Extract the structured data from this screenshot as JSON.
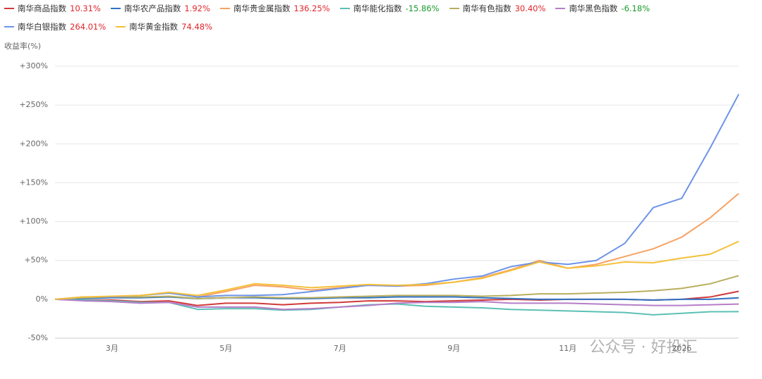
{
  "chart_data": {
    "type": "line",
    "y_axis_label": "收益率(%)",
    "watermark": "公众号 · 好投汇",
    "categories": [
      "",
      "",
      "3月",
      "",
      "",
      "",
      "5月",
      "",
      "",
      "",
      "7月",
      "",
      "",
      "",
      "9月",
      "",
      "",
      "",
      "11月",
      "",
      "",
      "",
      "2026",
      "",
      ""
    ],
    "ylim": [
      -50,
      300
    ],
    "yticks": [
      {
        "value": -50,
        "label": "-50%"
      },
      {
        "value": 0,
        "label": "0%"
      },
      {
        "value": 50,
        "label": "+50%"
      },
      {
        "value": 100,
        "label": "+100%"
      },
      {
        "value": 150,
        "label": "+150%"
      },
      {
        "value": 200,
        "label": "+200%"
      },
      {
        "value": 250,
        "label": "+250%"
      },
      {
        "value": 300,
        "label": "+300%"
      }
    ],
    "grid": true,
    "series": [
      {
        "name": "南华商品指数",
        "label": "10.31%",
        "color": "#d03a3a",
        "values": [
          0,
          -1,
          -1,
          -3,
          -2,
          -8,
          -5,
          -5,
          -7,
          -5,
          -4,
          -2,
          -2,
          -3,
          -2,
          -1,
          0,
          -1,
          0,
          0,
          0,
          -1,
          0,
          3,
          10.31
        ]
      },
      {
        "name": "南华农产品指数",
        "label": "1.92%",
        "color": "#2f72c4",
        "values": [
          0,
          1,
          2,
          2,
          3,
          1,
          2,
          2,
          1,
          1,
          2,
          2,
          3,
          3,
          3,
          2,
          1,
          0,
          0,
          0,
          0,
          -1,
          0,
          0,
          1.92
        ]
      },
      {
        "name": "南华贵金属指数",
        "label": "136.25%",
        "color": "#f7a263",
        "values": [
          0,
          3,
          3,
          5,
          8,
          3,
          10,
          18,
          16,
          12,
          15,
          18,
          17,
          18,
          22,
          28,
          38,
          50,
          40,
          45,
          55,
          65,
          80,
          105,
          136.25
        ]
      },
      {
        "name": "南华能化指数",
        "label": "-15.86%",
        "color": "#5cc0b5",
        "values": [
          0,
          -1,
          -2,
          -4,
          -4,
          -13,
          -12,
          -12,
          -14,
          -13,
          -10,
          -7,
          -6,
          -9,
          -10,
          -11,
          -13,
          -14,
          -15,
          -16,
          -17,
          -20,
          -18,
          -16,
          -15.86
        ]
      },
      {
        "name": "南华有色指数",
        "label": "30.40%",
        "color": "#b8ae5e",
        "values": [
          0,
          2,
          3,
          3,
          4,
          1,
          2,
          3,
          2,
          2,
          3,
          4,
          5,
          5,
          5,
          4,
          5,
          7,
          7,
          8,
          9,
          11,
          14,
          20,
          30.4
        ]
      },
      {
        "name": "南华黑色指数",
        "label": "-6.18%",
        "color": "#b57ec8",
        "values": [
          0,
          -2,
          -3,
          -5,
          -4,
          -10,
          -10,
          -10,
          -13,
          -12,
          -10,
          -8,
          -5,
          -4,
          -4,
          -3,
          -5,
          -5,
          -5,
          -6,
          -7,
          -8,
          -8,
          -7,
          -6.18
        ]
      },
      {
        "name": "南华白银指数",
        "label": "264.01%",
        "color": "#6d93e8",
        "values": [
          0,
          3,
          3,
          5,
          8,
          3,
          5,
          5,
          6,
          10,
          14,
          18,
          17,
          20,
          26,
          30,
          42,
          48,
          45,
          50,
          72,
          118,
          130,
          195,
          264.01
        ]
      },
      {
        "name": "南华黄金指数",
        "label": "74.48%",
        "color": "#f5c03a",
        "values": [
          0,
          3,
          4,
          5,
          9,
          5,
          12,
          20,
          18,
          15,
          17,
          19,
          18,
          19,
          22,
          27,
          37,
          48,
          40,
          43,
          48,
          47,
          53,
          58,
          74.48
        ]
      }
    ]
  }
}
